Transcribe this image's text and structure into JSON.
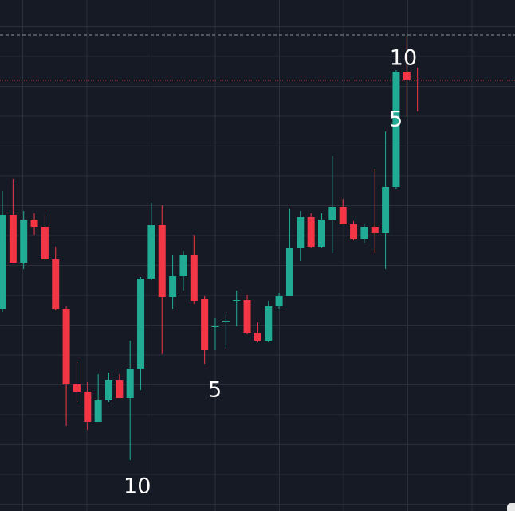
{
  "chart_data": {
    "type": "candlestick",
    "ylim": [
      0,
      642
    ],
    "up_color": "#22ab94",
    "down_color": "#f23645",
    "open": [
      254,
      372,
      312,
      366,
      357,
      316,
      254,
      159,
      150,
      112,
      139,
      164,
      142,
      179,
      292,
      359,
      269,
      295,
      322,
      266,
      232,
      239,
      265,
      265,
      224,
      214,
      257,
      270,
      330,
      369,
      332,
      366,
      382,
      360,
      342,
      357,
      349,
      407,
      552,
      542
    ],
    "close": [
      372,
      312,
      366,
      357,
      316,
      254,
      159,
      150,
      112,
      139,
      164,
      142,
      179,
      292,
      359,
      269,
      295,
      322,
      264,
      202,
      232,
      239,
      265,
      224,
      214,
      257,
      270,
      330,
      369,
      332,
      366,
      382,
      360,
      342,
      357,
      349,
      407,
      552,
      542,
      541
    ],
    "high": [
      402,
      417,
      377,
      374,
      372,
      332,
      257,
      187,
      162,
      172,
      174,
      172,
      214,
      294,
      387,
      384,
      322,
      327,
      347,
      270,
      242,
      247,
      277,
      272,
      237,
      264,
      274,
      380,
      377,
      374,
      374,
      446,
      392,
      364,
      360,
      430,
      477,
      554,
      597,
      557
    ],
    "low": [
      250,
      312,
      304,
      347,
      314,
      252,
      107,
      137,
      102,
      112,
      137,
      142,
      64,
      152,
      290,
      197,
      254,
      277,
      260,
      185,
      202,
      204,
      232,
      222,
      212,
      212,
      254,
      270,
      314,
      330,
      330,
      324,
      360,
      340,
      337,
      324,
      304,
      405,
      495,
      502
    ],
    "annotations": [
      {
        "text": "5",
        "at": 36
      },
      {
        "text": "10",
        "at": 37
      },
      {
        "text": "5",
        "at": 19
      },
      {
        "text": "10",
        "at": 12
      }
    ]
  }
}
